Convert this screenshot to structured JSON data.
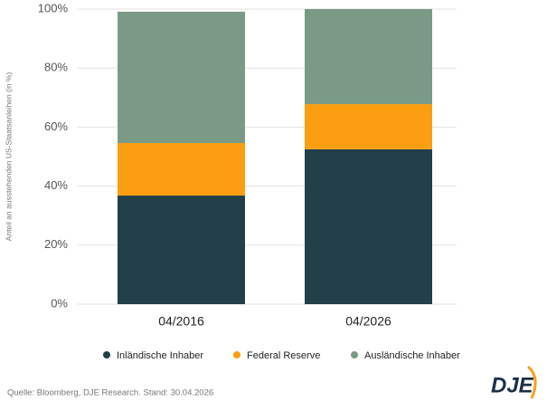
{
  "chart_data": {
    "type": "stacked_bar",
    "y_label": "Anteil an ausstehenden US-Staatsanleihen (in %)",
    "categories": [
      "04/2016",
      "04/2026"
    ],
    "series": [
      {
        "name": "Inländische Inhaber",
        "color": "#223f4a",
        "values": [
          36.8,
          52.5
        ]
      },
      {
        "name": "Federal Reserve",
        "color": "#fb9e12",
        "values": [
          17.8,
          15.3
        ]
      },
      {
        "name": "Ausländische Inhaber",
        "color": "#7a9a86",
        "values": [
          44.5,
          32.2
        ]
      }
    ],
    "ylim": [
      0,
      100
    ],
    "yticks": [
      {
        "value": 0,
        "label": "0%"
      },
      {
        "value": 20,
        "label": "20%"
      },
      {
        "value": 40,
        "label": "40%"
      },
      {
        "value": 60,
        "label": "60%"
      },
      {
        "value": 80,
        "label": "80%"
      },
      {
        "value": 100,
        "label": "100%"
      }
    ],
    "grid": true,
    "source": "Quelle: Bloomberg, DJE Research. Stand: 30.04.2026",
    "logo": "DJE"
  }
}
